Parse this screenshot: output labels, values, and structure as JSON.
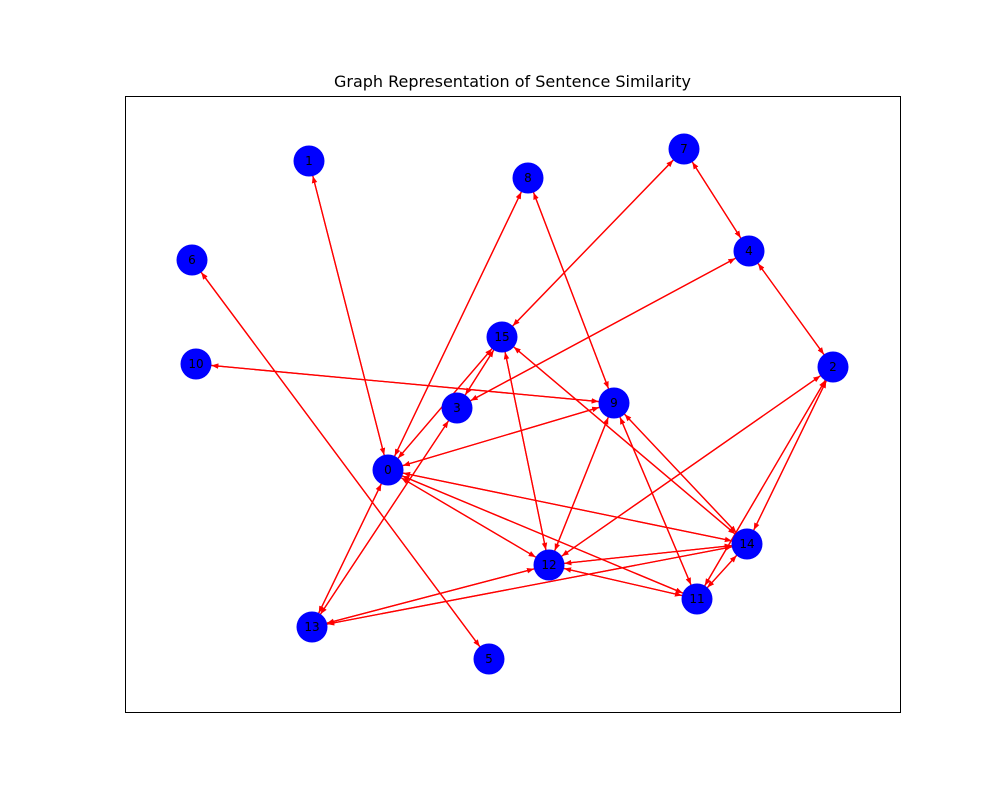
{
  "title": "Graph Representation of Sentence Similarity",
  "colors": {
    "node": "#0000ff",
    "edge": "#ff0000",
    "frame": "#000000",
    "label": "#000000"
  },
  "chart_data": {
    "type": "network",
    "directed": true,
    "nodes": [
      {
        "id": 0,
        "label": "0"
      },
      {
        "id": 1,
        "label": "1"
      },
      {
        "id": 2,
        "label": "2"
      },
      {
        "id": 3,
        "label": "3"
      },
      {
        "id": 4,
        "label": "4"
      },
      {
        "id": 5,
        "label": "5"
      },
      {
        "id": 6,
        "label": "6"
      },
      {
        "id": 7,
        "label": "7"
      },
      {
        "id": 8,
        "label": "8"
      },
      {
        "id": 9,
        "label": "9"
      },
      {
        "id": 10,
        "label": "10"
      },
      {
        "id": 11,
        "label": "11"
      },
      {
        "id": 12,
        "label": "12"
      },
      {
        "id": 13,
        "label": "13"
      },
      {
        "id": 14,
        "label": "14"
      },
      {
        "id": 15,
        "label": "15"
      }
    ],
    "edges": [
      [
        1,
        0
      ],
      [
        0,
        1
      ],
      [
        6,
        5
      ],
      [
        5,
        6
      ],
      [
        10,
        9
      ],
      [
        9,
        10
      ],
      [
        4,
        7
      ],
      [
        7,
        4
      ],
      [
        4,
        2
      ],
      [
        2,
        4
      ],
      [
        8,
        9
      ],
      [
        9,
        8
      ],
      [
        8,
        0
      ],
      [
        0,
        8
      ],
      [
        15,
        7
      ],
      [
        7,
        15
      ],
      [
        3,
        4
      ],
      [
        4,
        3
      ],
      [
        3,
        15
      ],
      [
        15,
        3
      ],
      [
        0,
        15
      ],
      [
        15,
        0
      ],
      [
        0,
        9
      ],
      [
        9,
        0
      ],
      [
        15,
        12
      ],
      [
        12,
        15
      ],
      [
        15,
        14
      ],
      [
        14,
        15
      ],
      [
        3,
        13
      ],
      [
        13,
        3
      ],
      [
        0,
        13
      ],
      [
        13,
        0
      ],
      [
        0,
        12
      ],
      [
        12,
        0
      ],
      [
        0,
        14
      ],
      [
        14,
        0
      ],
      [
        0,
        11
      ],
      [
        11,
        0
      ],
      [
        9,
        12
      ],
      [
        12,
        9
      ],
      [
        9,
        14
      ],
      [
        14,
        9
      ],
      [
        9,
        11
      ],
      [
        11,
        9
      ],
      [
        2,
        12
      ],
      [
        12,
        2
      ],
      [
        2,
        14
      ],
      [
        14,
        2
      ],
      [
        2,
        11
      ],
      [
        11,
        2
      ],
      [
        12,
        14
      ],
      [
        14,
        12
      ],
      [
        12,
        11
      ],
      [
        11,
        12
      ],
      [
        14,
        11
      ],
      [
        11,
        14
      ],
      [
        13,
        12
      ],
      [
        12,
        13
      ],
      [
        13,
        14
      ],
      [
        14,
        13
      ]
    ]
  }
}
